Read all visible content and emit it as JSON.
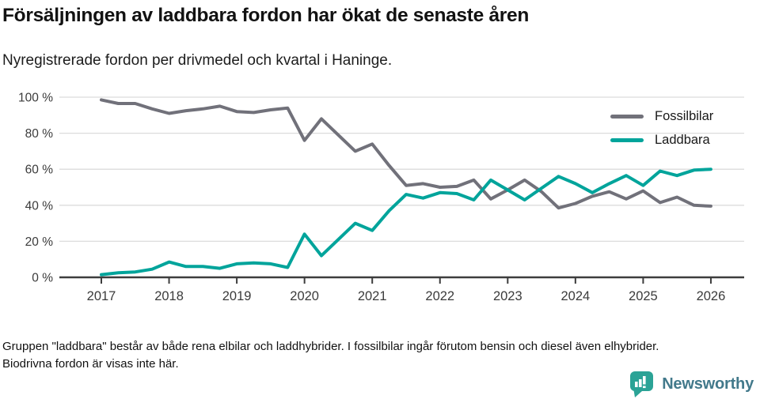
{
  "chart_data": {
    "type": "line",
    "title": "Försäljningen av laddbara fordon har ökat de senaste åren",
    "subtitle": "Nyregistrerade fordon per drivmedel och kvartal i Haninge.",
    "x_unit": "quarter",
    "points_per_year": 4,
    "x_start_label": "2017 Q1",
    "x_end_label": "2026 Q1",
    "x_tick_labels": [
      "2017",
      "2018",
      "2019",
      "2020",
      "2021",
      "2022",
      "2023",
      "2024",
      "2025",
      "2026"
    ],
    "y_ticks": [
      0,
      20,
      40,
      60,
      80,
      100
    ],
    "y_tick_suffix": " %",
    "ylim": [
      0,
      100
    ],
    "grid": "horizontal",
    "legend_position": "top-right",
    "series": [
      {
        "name": "Fossilbilar",
        "color": "#71717a",
        "values": [
          98.5,
          96.5,
          96.5,
          93.5,
          91,
          92.5,
          93.5,
          95,
          92,
          91.5,
          93,
          94,
          76,
          88,
          79,
          70,
          74,
          62,
          51,
          52,
          50,
          50.5,
          54,
          43.5,
          48.5,
          54,
          47.5,
          38.5,
          41,
          45,
          47.5,
          43.5,
          48,
          41.5,
          44.5,
          40,
          39.5
        ]
      },
      {
        "name": "Laddbara",
        "color": "#00a49b",
        "values": [
          1.5,
          2.5,
          3,
          4.5,
          8.5,
          6,
          6,
          5,
          7.5,
          8,
          7.5,
          5.5,
          24,
          12,
          21,
          30,
          26,
          37,
          46,
          44,
          47,
          46.5,
          43,
          54,
          48.5,
          43,
          49.5,
          56,
          52,
          47,
          52,
          56.5,
          51,
          59,
          56.5,
          59.5,
          60
        ]
      }
    ],
    "footnote": "Gruppen \"laddbara\" består av både rena elbilar och laddhybrider. I fossilbilar ingår förutom bensin och diesel även elhybrider. Biodrivna fordon är visas inte här."
  },
  "branding": {
    "name": "Newsworthy",
    "icon": "bar-chart-speech-bubble-icon",
    "icon_color": "#2ba396",
    "text_color": "#42798b"
  }
}
